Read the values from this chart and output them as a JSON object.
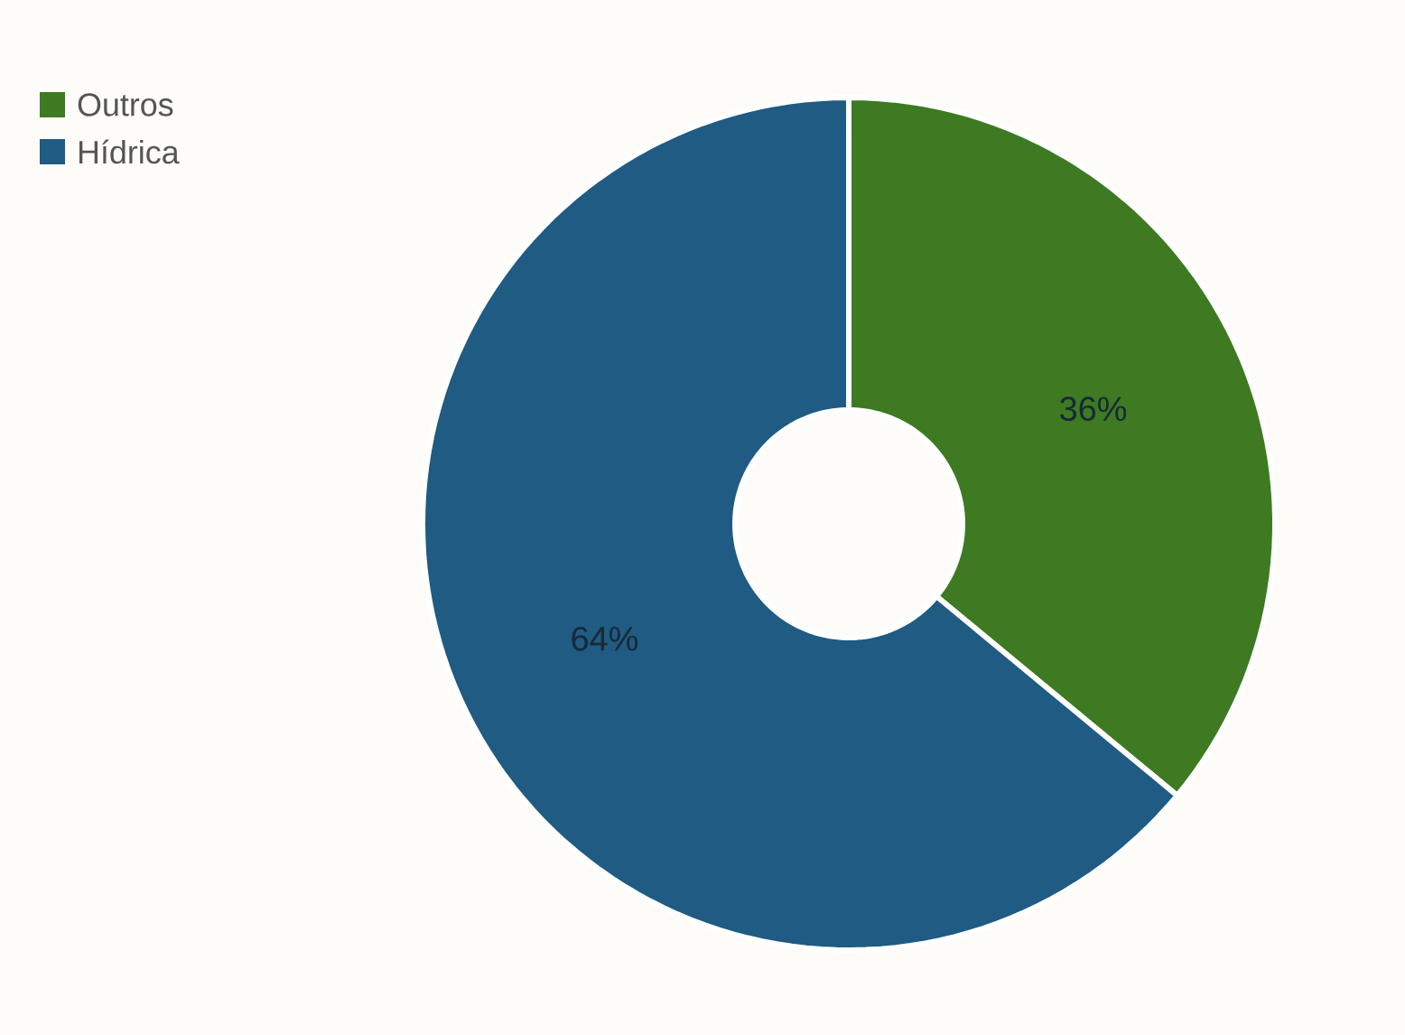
{
  "chart_data": {
    "type": "donut",
    "categories": [
      "Outros",
      "Hídrica"
    ],
    "values": [
      36,
      64
    ],
    "colors": [
      "#3d7a22",
      "#1f5b82"
    ],
    "value_labels": [
      "36%",
      "64%"
    ],
    "legend": "top left"
  }
}
